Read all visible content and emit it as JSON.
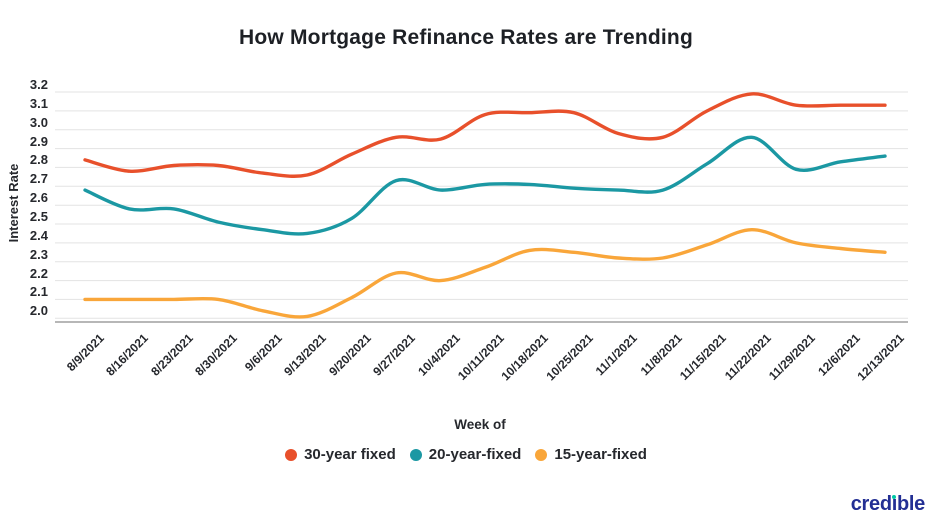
{
  "title": "How Mortgage Refinance Rates are Trending",
  "axes": {
    "y_label": "Interest Rate",
    "x_label": "Week of",
    "y_ticks": [
      "3.2",
      "3.1",
      "3.0",
      "2.9",
      "2.8",
      "2.7",
      "2.6",
      "2.5",
      "2.4",
      "2.3",
      "2.2",
      "2.1",
      "2.0"
    ]
  },
  "chart_data": {
    "type": "line",
    "x": [
      "8/9/2021",
      "8/16/2021",
      "8/23/2021",
      "8/30/2021",
      "9/6/2021",
      "9/13/2021",
      "9/20/2021",
      "9/27/2021",
      "10/4/2021",
      "10/11/2021",
      "10/18/2021",
      "10/25/2021",
      "11/1/2021",
      "11/8/2021",
      "11/15/2021",
      "11/22/2021",
      "11/29/2021",
      "12/6/2021",
      "12/13/2021"
    ],
    "series": [
      {
        "name": "30-year fixed",
        "color": "#e8502b",
        "values": [
          2.84,
          2.78,
          2.81,
          2.81,
          2.77,
          2.76,
          2.87,
          2.96,
          2.95,
          3.08,
          3.09,
          3.09,
          2.98,
          2.96,
          3.1,
          3.19,
          3.13,
          3.13,
          3.13
        ]
      },
      {
        "name": "20-year-fixed",
        "color": "#1b98a3",
        "values": [
          2.68,
          2.58,
          2.58,
          2.51,
          2.47,
          2.45,
          2.53,
          2.73,
          2.68,
          2.71,
          2.71,
          2.69,
          2.68,
          2.68,
          2.82,
          2.96,
          2.79,
          2.83,
          2.86
        ]
      },
      {
        "name": "15-year-fixed",
        "color": "#f9a63a",
        "values": [
          2.1,
          2.1,
          2.1,
          2.1,
          2.04,
          2.01,
          2.11,
          2.24,
          2.2,
          2.27,
          2.36,
          2.35,
          2.32,
          2.32,
          2.39,
          2.47,
          2.4,
          2.37,
          2.35
        ]
      }
    ],
    "ylim": [
      2.0,
      3.2
    ],
    "grid": true,
    "legend_position": "bottom",
    "gridline_color": "#e3e3e3",
    "axis_line_color": "#8c8c8c"
  },
  "branding": {
    "logo_text": "credible",
    "logo_color": "#232f94",
    "logo_dot_color": "#00c9a7"
  }
}
